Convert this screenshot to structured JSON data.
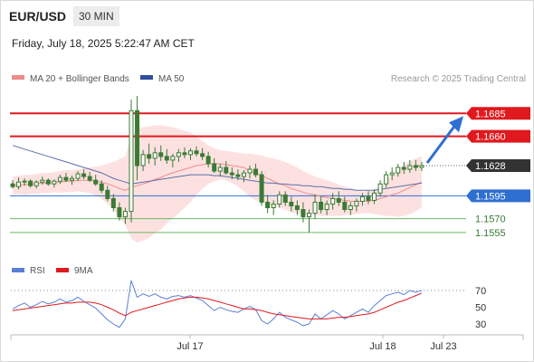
{
  "header": {
    "symbol": "EUR/USD",
    "timeframe": "30 MIN",
    "datetime": "Friday, July 18, 2025 5:22:47 AM CET"
  },
  "legend": {
    "ma20_bb": "MA 20 + Bollinger Bands",
    "ma50": "MA 50",
    "credit": "Research © 2025 Trading Central",
    "rsi": "RSI",
    "rsi_ma": "9MA"
  },
  "colors": {
    "resistance": "#e0191e",
    "support": "#2f6fd1",
    "target": "#6db865",
    "current": "#333333",
    "candle": "#3a7a34",
    "ma50": "#5b6fa8",
    "ma20": "#f08a8a",
    "band": "#fde1e1",
    "rsi": "#5b7fd6",
    "rsi_ma": "#e0191e",
    "arrow": "#2f6fd1"
  },
  "chart_data": {
    "type": "candlestick",
    "price_range": [
      1.154,
      1.171
    ],
    "levels": [
      {
        "value": 1.1685,
        "label": "1.1685",
        "kind": "resistance"
      },
      {
        "value": 1.166,
        "label": "1.1660",
        "kind": "resistance"
      },
      {
        "value": 1.1628,
        "label": "1.1628",
        "kind": "current"
      },
      {
        "value": 1.1595,
        "label": "1.1595",
        "kind": "pivot"
      },
      {
        "value": 1.157,
        "label": "1.1570",
        "kind": "support"
      },
      {
        "value": 1.1555,
        "label": "1.1555",
        "kind": "support"
      }
    ],
    "x_labels": [
      "Jul 17",
      "Jul 18",
      "Jul 23"
    ],
    "candles": [
      [
        1.1608,
        1.1612,
        1.1603,
        1.1605
      ],
      [
        1.1605,
        1.1615,
        1.1602,
        1.161
      ],
      [
        1.161,
        1.1614,
        1.1606,
        1.1611
      ],
      [
        1.1611,
        1.1613,
        1.1604,
        1.1606
      ],
      [
        1.1606,
        1.1612,
        1.1603,
        1.161
      ],
      [
        1.161,
        1.1616,
        1.1607,
        1.1612
      ],
      [
        1.1612,
        1.1614,
        1.1606,
        1.1608
      ],
      [
        1.1608,
        1.1613,
        1.1604,
        1.1611
      ],
      [
        1.1611,
        1.1618,
        1.1608,
        1.1615
      ],
      [
        1.1615,
        1.162,
        1.161,
        1.1612
      ],
      [
        1.1612,
        1.1617,
        1.1607,
        1.1614
      ],
      [
        1.1614,
        1.1622,
        1.1611,
        1.1619
      ],
      [
        1.1619,
        1.1624,
        1.1613,
        1.1616
      ],
      [
        1.1616,
        1.1621,
        1.161,
        1.1612
      ],
      [
        1.1612,
        1.1618,
        1.1606,
        1.1608
      ],
      [
        1.1608,
        1.1612,
        1.1598,
        1.1601
      ],
      [
        1.1601,
        1.1606,
        1.1589,
        1.1592
      ],
      [
        1.1592,
        1.1597,
        1.1578,
        1.1582
      ],
      [
        1.1582,
        1.1588,
        1.1568,
        1.1572
      ],
      [
        1.1572,
        1.1582,
        1.1564,
        1.1578
      ],
      [
        1.1578,
        1.17,
        1.1566,
        1.1688
      ],
      [
        1.1688,
        1.1704,
        1.1612,
        1.1628
      ],
      [
        1.1628,
        1.1645,
        1.1622,
        1.164
      ],
      [
        1.164,
        1.1652,
        1.163,
        1.1636
      ],
      [
        1.1636,
        1.1648,
        1.1628,
        1.1642
      ],
      [
        1.1642,
        1.165,
        1.1633,
        1.1638
      ],
      [
        1.1638,
        1.1646,
        1.163,
        1.1634
      ],
      [
        1.1634,
        1.1641,
        1.1626,
        1.1638
      ],
      [
        1.1638,
        1.1646,
        1.1632,
        1.1642
      ],
      [
        1.1642,
        1.1648,
        1.1636,
        1.164
      ],
      [
        1.164,
        1.1647,
        1.1634,
        1.1644
      ],
      [
        1.1644,
        1.1649,
        1.1638,
        1.1641
      ],
      [
        1.1641,
        1.1647,
        1.1634,
        1.1638
      ],
      [
        1.1638,
        1.1643,
        1.1626,
        1.163
      ],
      [
        1.163,
        1.1636,
        1.162,
        1.1622
      ],
      [
        1.1622,
        1.163,
        1.1616,
        1.1626
      ],
      [
        1.1626,
        1.1633,
        1.1618,
        1.162
      ],
      [
        1.162,
        1.1626,
        1.1613,
        1.1618
      ],
      [
        1.1618,
        1.1624,
        1.1612,
        1.1616
      ],
      [
        1.1616,
        1.1623,
        1.161,
        1.162
      ],
      [
        1.162,
        1.1628,
        1.1614,
        1.1624
      ],
      [
        1.1624,
        1.163,
        1.1615,
        1.1618
      ],
      [
        1.1618,
        1.1622,
        1.1584,
        1.1588
      ],
      [
        1.1588,
        1.1596,
        1.1576,
        1.1582
      ],
      [
        1.1582,
        1.159,
        1.1574,
        1.1586
      ],
      [
        1.1586,
        1.16,
        1.1582,
        1.1596
      ],
      [
        1.1596,
        1.16,
        1.1584,
        1.1588
      ],
      [
        1.1588,
        1.1594,
        1.1578,
        1.1584
      ],
      [
        1.1584,
        1.159,
        1.1574,
        1.158
      ],
      [
        1.158,
        1.1588,
        1.1566,
        1.1572
      ],
      [
        1.1572,
        1.158,
        1.1555,
        1.1576
      ],
      [
        1.1576,
        1.1596,
        1.157,
        1.1588
      ],
      [
        1.1588,
        1.1594,
        1.1576,
        1.158
      ],
      [
        1.158,
        1.159,
        1.1574,
        1.1586
      ],
      [
        1.1586,
        1.1598,
        1.158,
        1.1592
      ],
      [
        1.1592,
        1.16,
        1.1584,
        1.1588
      ],
      [
        1.1588,
        1.1594,
        1.1577,
        1.158
      ],
      [
        1.158,
        1.1588,
        1.1574,
        1.1584
      ],
      [
        1.1584,
        1.1592,
        1.1578,
        1.1589
      ],
      [
        1.1589,
        1.1598,
        1.1584,
        1.1594
      ],
      [
        1.1594,
        1.16,
        1.1586,
        1.159
      ],
      [
        1.159,
        1.1602,
        1.1586,
        1.1598
      ],
      [
        1.1598,
        1.1612,
        1.1594,
        1.1608
      ],
      [
        1.1608,
        1.1622,
        1.1604,
        1.1618
      ],
      [
        1.1618,
        1.1626,
        1.1612,
        1.162
      ],
      [
        1.162,
        1.163,
        1.1616,
        1.1626
      ],
      [
        1.1626,
        1.1632,
        1.1619,
        1.1624
      ],
      [
        1.1624,
        1.1634,
        1.162,
        1.1628
      ],
      [
        1.1628,
        1.1634,
        1.1622,
        1.1626
      ],
      [
        1.1626,
        1.1632,
        1.1622,
        1.1628
      ]
    ],
    "ma20": [
      1.1606,
      1.1607,
      1.1607,
      1.1608,
      1.1608,
      1.1609,
      1.1609,
      1.161,
      1.161,
      1.1611,
      1.1611,
      1.1612,
      1.1612,
      1.1612,
      1.1611,
      1.161,
      1.1608,
      1.1606,
      1.1603,
      1.1601,
      1.1604,
      1.1606,
      1.1608,
      1.161,
      1.1613,
      1.1615,
      1.1618,
      1.162,
      1.1622,
      1.1624,
      1.1626,
      1.1628,
      1.1629,
      1.163,
      1.163,
      1.163,
      1.1629,
      1.1628,
      1.1627,
      1.1626,
      1.1622,
      1.162,
      1.1617,
      1.1614,
      1.1611,
      1.1608,
      1.1606,
      1.1603,
      1.1601,
      1.1599,
      1.1597,
      1.1596,
      1.1594,
      1.1593,
      1.1592,
      1.1591,
      1.159,
      1.1589,
      1.1589,
      1.1589,
      1.1589,
      1.159,
      1.1592,
      1.1594,
      1.1596,
      1.1598,
      1.1601,
      1.1604,
      1.1607,
      1.161
    ],
    "bb_upper": [
      1.1616,
      1.1617,
      1.1618,
      1.1618,
      1.1619,
      1.162,
      1.162,
      1.1621,
      1.1622,
      1.1623,
      1.1623,
      1.1624,
      1.1625,
      1.1626,
      1.1627,
      1.1628,
      1.163,
      1.1632,
      1.1635,
      1.1638,
      1.166,
      1.1668,
      1.167,
      1.1671,
      1.1672,
      1.1672,
      1.1671,
      1.167,
      1.1668,
      1.1666,
      1.1664,
      1.166,
      1.1655,
      1.165,
      1.1647,
      1.1645,
      1.1644,
      1.1643,
      1.1642,
      1.1641,
      1.1641,
      1.164,
      1.1639,
      1.1637,
      1.1636,
      1.1634,
      1.1632,
      1.1629,
      1.1626,
      1.1622,
      1.1619,
      1.1616,
      1.1614,
      1.1612,
      1.161,
      1.1607,
      1.1605,
      1.1603,
      1.1601,
      1.16,
      1.16,
      1.1602,
      1.1606,
      1.1612,
      1.1618,
      1.1624,
      1.1629,
      1.1633,
      1.1636,
      1.1638
    ],
    "bb_lower": [
      1.1596,
      1.1597,
      1.1596,
      1.1597,
      1.1597,
      1.1598,
      1.1598,
      1.1599,
      1.1598,
      1.1599,
      1.1599,
      1.16,
      1.1599,
      1.1598,
      1.1595,
      1.1592,
      1.1586,
      1.158,
      1.1571,
      1.1564,
      1.1548,
      1.1544,
      1.1546,
      1.1549,
      1.1554,
      1.1558,
      1.1565,
      1.157,
      1.1576,
      1.1582,
      1.1588,
      1.1596,
      1.1603,
      1.1608,
      1.1611,
      1.1613,
      1.1612,
      1.1609,
      1.1605,
      1.16,
      1.1594,
      1.159,
      1.1588,
      1.1586,
      1.1584,
      1.1582,
      1.158,
      1.1577,
      1.1576,
      1.1575,
      1.1574,
      1.1574,
      1.1573,
      1.1573,
      1.1573,
      1.1573,
      1.1574,
      1.1574,
      1.1575,
      1.1576,
      1.1576,
      1.1575,
      1.1574,
      1.1573,
      1.1573,
      1.1572,
      1.1573,
      1.1575,
      1.1578,
      1.1582
    ],
    "ma50": [
      1.165,
      1.1648,
      1.1646,
      1.1644,
      1.1642,
      1.164,
      1.1638,
      1.1636,
      1.1634,
      1.1632,
      1.163,
      1.1628,
      1.1626,
      1.1624,
      1.1622,
      1.162,
      1.1617,
      1.1614,
      1.1612,
      1.161,
      1.1608,
      1.1609,
      1.161,
      1.1611,
      1.1612,
      1.1613,
      1.1614,
      1.1615,
      1.1616,
      1.1617,
      1.1618,
      1.1618,
      1.1618,
      1.1618,
      1.1617,
      1.1617,
      1.1616,
      1.1615,
      1.1614,
      1.1613,
      1.1612,
      1.1611,
      1.161,
      1.1609,
      1.1609,
      1.1608,
      1.1608,
      1.1607,
      1.1607,
      1.1606,
      1.1606,
      1.1605,
      1.1605,
      1.1604,
      1.1603,
      1.1603,
      1.1602,
      1.1602,
      1.1601,
      1.1601,
      1.1601,
      1.1601,
      1.1602,
      1.1603,
      1.1604,
      1.1605,
      1.1606,
      1.1607,
      1.1608,
      1.1609
    ],
    "rsi_range": [
      0,
      100
    ],
    "rsi_ticks": [
      70,
      50,
      30
    ],
    "rsi": [
      48,
      52,
      55,
      50,
      53,
      57,
      54,
      56,
      60,
      56,
      58,
      62,
      57,
      53,
      49,
      42,
      35,
      30,
      26,
      36,
      82,
      62,
      66,
      63,
      66,
      62,
      60,
      63,
      64,
      62,
      64,
      61,
      58,
      52,
      46,
      50,
      47,
      45,
      44,
      48,
      51,
      47,
      34,
      30,
      36,
      44,
      38,
      35,
      32,
      28,
      30,
      42,
      36,
      41,
      46,
      42,
      36,
      40,
      44,
      48,
      44,
      52,
      58,
      64,
      66,
      68,
      65,
      70,
      68,
      70
    ],
    "rsi_ma": [
      46,
      47,
      48,
      49,
      50,
      51,
      52,
      53,
      54,
      55,
      55,
      56,
      56,
      56,
      55,
      53,
      50,
      47,
      43,
      40,
      44,
      46,
      48,
      50,
      52,
      54,
      56,
      58,
      60,
      61,
      62,
      62,
      61,
      60,
      58,
      56,
      54,
      52,
      50,
      48,
      48,
      47,
      46,
      44,
      42,
      41,
      40,
      39,
      38,
      37,
      36,
      36,
      36,
      36,
      37,
      38,
      38,
      39,
      40,
      41,
      42,
      44,
      47,
      50,
      53,
      56,
      58,
      61,
      64,
      67
    ]
  }
}
